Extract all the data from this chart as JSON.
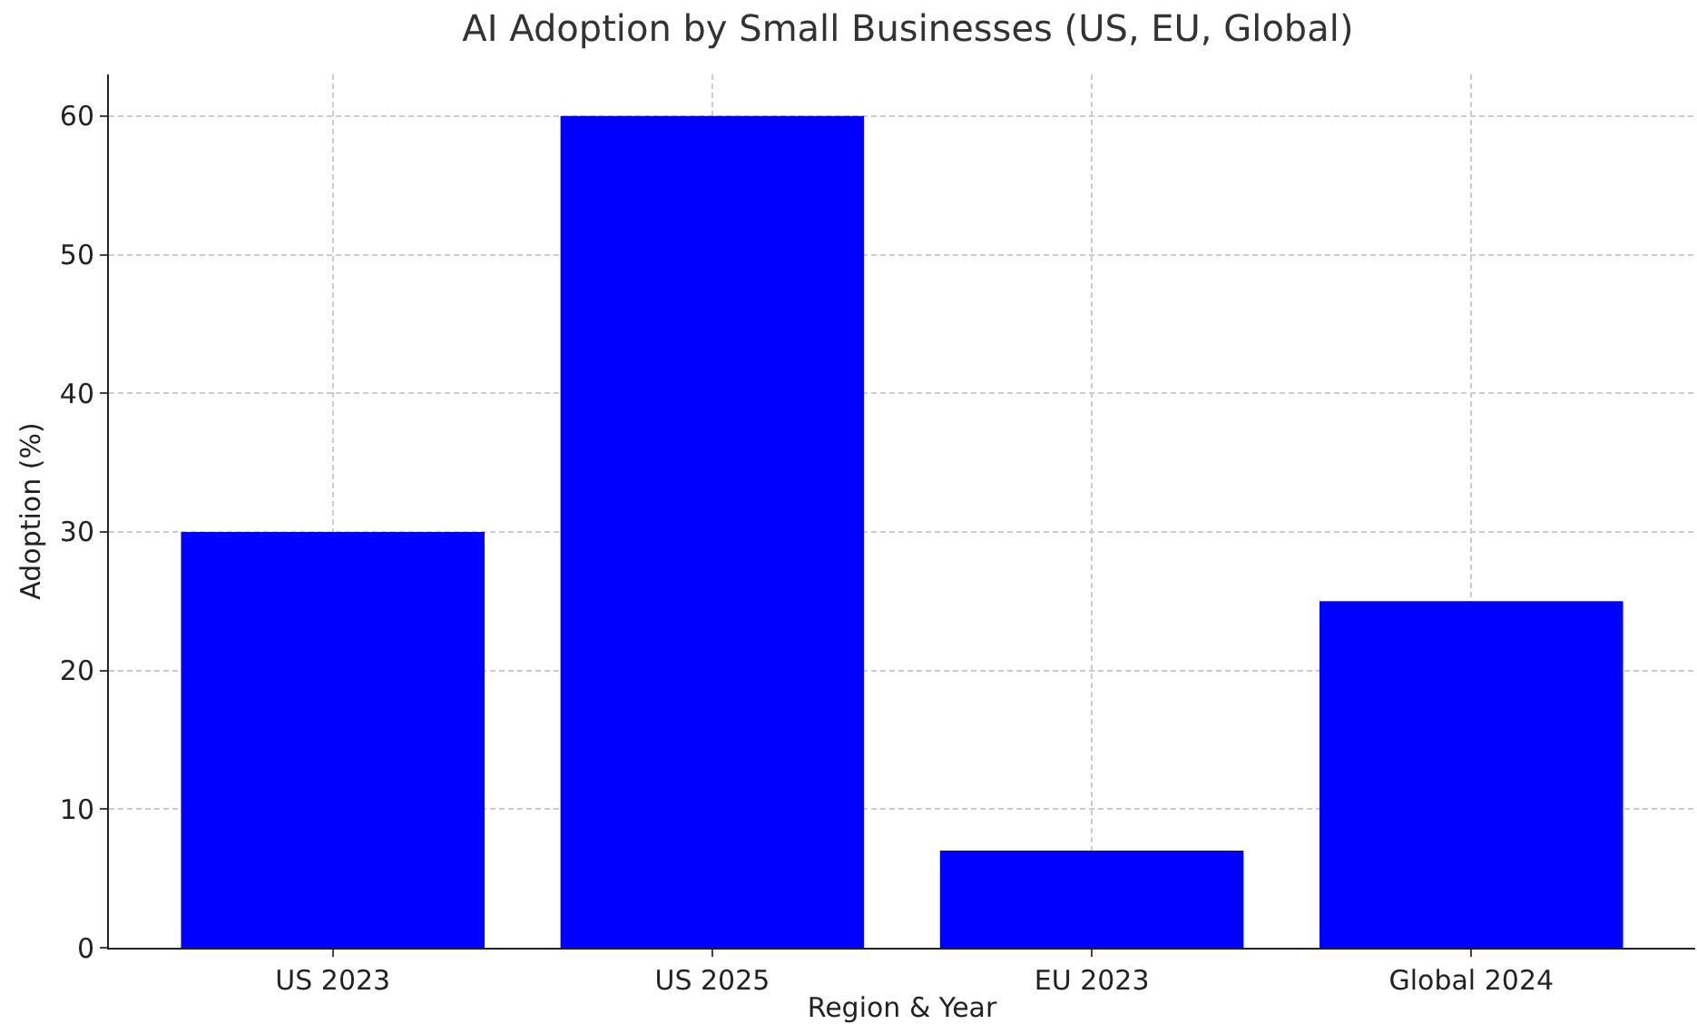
{
  "chart_data": {
    "type": "bar",
    "title": "AI Adoption by Small Businesses (US, EU, Global)",
    "xlabel": "Region & Year",
    "ylabel": "Adoption (%)",
    "categories": [
      "US 2023",
      "US 2025",
      "EU 2023",
      "Global 2024"
    ],
    "values": [
      30,
      60,
      7,
      25
    ],
    "color": "#0000ff",
    "ylim": [
      0,
      63
    ],
    "yticks": [
      0,
      10,
      20,
      30,
      40,
      50,
      60
    ],
    "grid": true
  }
}
